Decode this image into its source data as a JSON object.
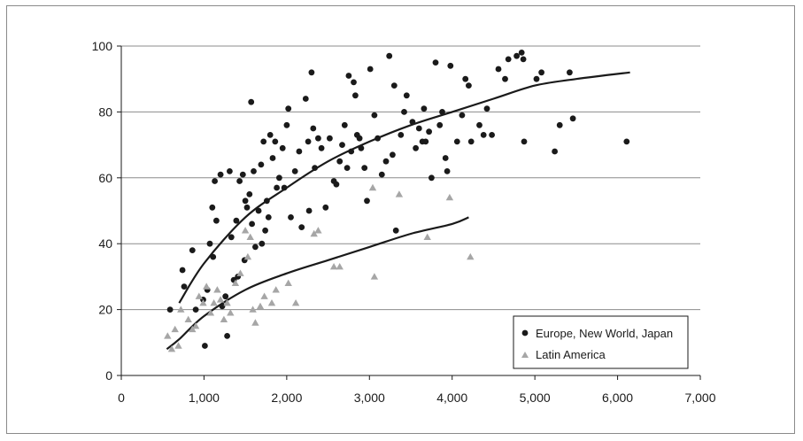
{
  "chart_data": {
    "type": "scatter",
    "title": "",
    "xlabel": "",
    "ylabel": "",
    "xlim": [
      0,
      7000
    ],
    "ylim": [
      0,
      100
    ],
    "x_ticks": [
      0,
      1000,
      2000,
      3000,
      4000,
      5000,
      6000,
      7000
    ],
    "x_tick_labels": [
      "0",
      "1,000",
      "2,000",
      "3,000",
      "4,000",
      "5,000",
      "6,000",
      "7,000"
    ],
    "y_ticks": [
      0,
      20,
      40,
      60,
      80,
      100
    ],
    "y_tick_labels": [
      "0",
      "20",
      "40",
      "60",
      "80",
      "100"
    ],
    "grid": "horizontal",
    "legend_position": "bottom-right",
    "series": [
      {
        "name": "Europe, New World, Japan",
        "marker": "circle",
        "color": "#1a1a1a",
        "points": [
          [
            590,
            20
          ],
          [
            760,
            27
          ],
          [
            740,
            32
          ],
          [
            860,
            38
          ],
          [
            900,
            20
          ],
          [
            990,
            23
          ],
          [
            1010,
            9
          ],
          [
            1040,
            26
          ],
          [
            1070,
            40
          ],
          [
            1100,
            51
          ],
          [
            1130,
            59
          ],
          [
            1150,
            47
          ],
          [
            1110,
            36
          ],
          [
            1200,
            61
          ],
          [
            1220,
            21
          ],
          [
            1260,
            24
          ],
          [
            1280,
            12
          ],
          [
            1310,
            62
          ],
          [
            1330,
            42
          ],
          [
            1360,
            29
          ],
          [
            1390,
            47
          ],
          [
            1410,
            30
          ],
          [
            1430,
            59
          ],
          [
            1470,
            61
          ],
          [
            1500,
            53
          ],
          [
            1490,
            35
          ],
          [
            1520,
            51
          ],
          [
            1550,
            55
          ],
          [
            1570,
            83
          ],
          [
            1600,
            62
          ],
          [
            1580,
            46
          ],
          [
            1620,
            39
          ],
          [
            1660,
            50
          ],
          [
            1690,
            64
          ],
          [
            1700,
            40
          ],
          [
            1720,
            71
          ],
          [
            1740,
            44
          ],
          [
            1760,
            53
          ],
          [
            1780,
            48
          ],
          [
            1800,
            73
          ],
          [
            1830,
            66
          ],
          [
            1860,
            71
          ],
          [
            1880,
            57
          ],
          [
            1910,
            60
          ],
          [
            1950,
            69
          ],
          [
            1970,
            57
          ],
          [
            2000,
            76
          ],
          [
            2020,
            81
          ],
          [
            2050,
            48
          ],
          [
            2100,
            62
          ],
          [
            2150,
            68
          ],
          [
            2180,
            45
          ],
          [
            2230,
            84
          ],
          [
            2260,
            71
          ],
          [
            2270,
            50
          ],
          [
            2300,
            92
          ],
          [
            2320,
            75
          ],
          [
            2340,
            63
          ],
          [
            2380,
            72
          ],
          [
            2420,
            69
          ],
          [
            2470,
            51
          ],
          [
            2520,
            72
          ],
          [
            2570,
            59
          ],
          [
            2600,
            58
          ],
          [
            2640,
            65
          ],
          [
            2670,
            70
          ],
          [
            2700,
            76
          ],
          [
            2730,
            63
          ],
          [
            2750,
            91
          ],
          [
            2780,
            68
          ],
          [
            2810,
            89
          ],
          [
            2830,
            85
          ],
          [
            2850,
            73
          ],
          [
            2880,
            72
          ],
          [
            2900,
            69
          ],
          [
            2940,
            63
          ],
          [
            2970,
            53
          ],
          [
            3010,
            93
          ],
          [
            3060,
            79
          ],
          [
            3100,
            72
          ],
          [
            3150,
            61
          ],
          [
            3200,
            65
          ],
          [
            3240,
            97
          ],
          [
            3280,
            67
          ],
          [
            3300,
            88
          ],
          [
            3320,
            44
          ],
          [
            3380,
            73
          ],
          [
            3420,
            80
          ],
          [
            3450,
            85
          ],
          [
            3520,
            77
          ],
          [
            3560,
            69
          ],
          [
            3600,
            75
          ],
          [
            3640,
            71
          ],
          [
            3660,
            81
          ],
          [
            3680,
            71
          ],
          [
            3720,
            74
          ],
          [
            3750,
            60
          ],
          [
            3800,
            95
          ],
          [
            3850,
            76
          ],
          [
            3880,
            80
          ],
          [
            3920,
            66
          ],
          [
            3940,
            62
          ],
          [
            3980,
            94
          ],
          [
            4060,
            71
          ],
          [
            4120,
            79
          ],
          [
            4160,
            90
          ],
          [
            4200,
            88
          ],
          [
            4230,
            71
          ],
          [
            4330,
            76
          ],
          [
            4380,
            73
          ],
          [
            4420,
            81
          ],
          [
            4480,
            73
          ],
          [
            4560,
            93
          ],
          [
            4640,
            90
          ],
          [
            4680,
            96
          ],
          [
            4780,
            97
          ],
          [
            4840,
            98
          ],
          [
            4860,
            96
          ],
          [
            4870,
            71
          ],
          [
            5020,
            90
          ],
          [
            5080,
            92
          ],
          [
            5240,
            68
          ],
          [
            5300,
            76
          ],
          [
            5420,
            92
          ],
          [
            5460,
            78
          ],
          [
            6110,
            71
          ]
        ]
      },
      {
        "name": "Latin America",
        "marker": "triangle",
        "color": "#a6a6a6",
        "points": [
          [
            560,
            12
          ],
          [
            610,
            8
          ],
          [
            650,
            14
          ],
          [
            690,
            9
          ],
          [
            720,
            20
          ],
          [
            810,
            17
          ],
          [
            860,
            14
          ],
          [
            900,
            15
          ],
          [
            940,
            24
          ],
          [
            990,
            22
          ],
          [
            1030,
            27
          ],
          [
            1080,
            19
          ],
          [
            1120,
            22
          ],
          [
            1160,
            26
          ],
          [
            1200,
            23
          ],
          [
            1240,
            17
          ],
          [
            1280,
            22
          ],
          [
            1320,
            19
          ],
          [
            1380,
            28
          ],
          [
            1440,
            31
          ],
          [
            1500,
            44
          ],
          [
            1530,
            36
          ],
          [
            1560,
            42
          ],
          [
            1590,
            20
          ],
          [
            1620,
            16
          ],
          [
            1680,
            21
          ],
          [
            1730,
            24
          ],
          [
            1820,
            22
          ],
          [
            1870,
            26
          ],
          [
            2020,
            28
          ],
          [
            2110,
            22
          ],
          [
            2330,
            43
          ],
          [
            2380,
            44
          ],
          [
            2570,
            33
          ],
          [
            2640,
            33
          ],
          [
            3060,
            30
          ],
          [
            3040,
            57
          ],
          [
            3360,
            55
          ],
          [
            3700,
            42
          ],
          [
            3970,
            54
          ],
          [
            4220,
            36
          ]
        ]
      }
    ],
    "trendlines": [
      {
        "series": "Europe, New World, Japan",
        "points": [
          [
            700,
            22
          ],
          [
            1000,
            34
          ],
          [
            1500,
            48
          ],
          [
            2000,
            57
          ],
          [
            2500,
            65
          ],
          [
            3000,
            71
          ],
          [
            3500,
            76
          ],
          [
            4000,
            80
          ],
          [
            4500,
            84
          ],
          [
            5000,
            88
          ],
          [
            5500,
            90
          ],
          [
            6150,
            92
          ]
        ]
      },
      {
        "series": "Latin America",
        "points": [
          [
            550,
            8
          ],
          [
            700,
            11
          ],
          [
            1000,
            18
          ],
          [
            1500,
            26
          ],
          [
            2000,
            31
          ],
          [
            2500,
            35
          ],
          [
            3000,
            39
          ],
          [
            3500,
            43
          ],
          [
            4000,
            46
          ],
          [
            4200,
            48
          ]
        ]
      }
    ]
  }
}
